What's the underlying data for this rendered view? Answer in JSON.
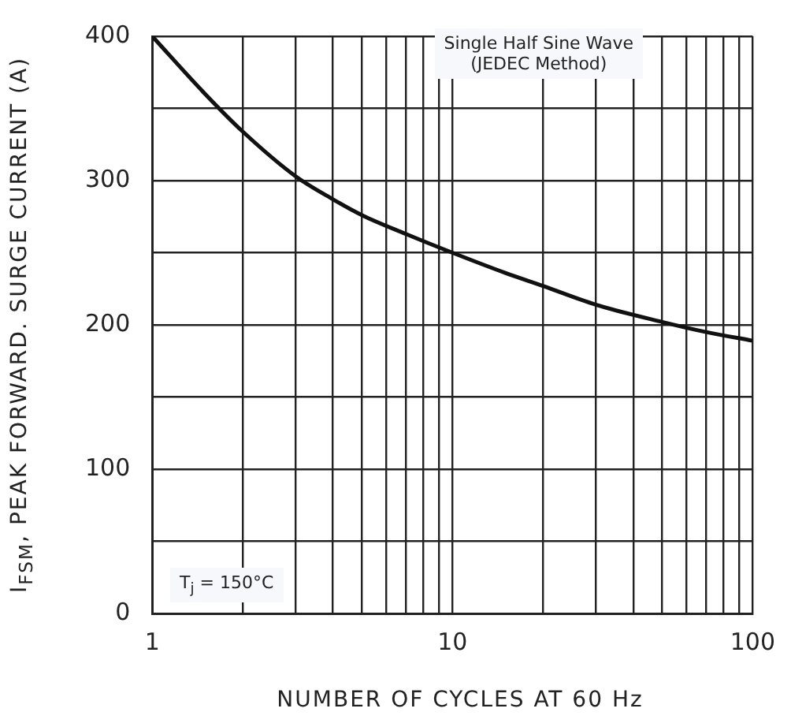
{
  "chart_data": {
    "type": "line",
    "xlabel": "NUMBER OF CYCLES AT 60 Hz",
    "ylabel": "I$_{FSM}$, PEAK FORWARD. SURGE CURRENT (A)",
    "annotations": [
      "Single Half Sine Wave\n(JEDEC Method)",
      "T$_{j}$ = 150°C"
    ],
    "x": [
      1,
      1.5,
      2,
      3,
      4,
      5,
      7,
      10,
      15,
      20,
      30,
      50,
      70,
      100
    ],
    "series": [
      {
        "color": "#111111",
        "values": [
          400,
          360,
          334,
          303,
          287,
          276,
          263,
          250,
          236,
          227,
          214,
          202,
          195,
          189
        ]
      }
    ],
    "log": "x",
    "xlim": [
      1,
      100
    ],
    "ylim": [
      0,
      400
    ],
    "xticks": [
      1,
      {
        "value": 2,
        "label": null
      },
      {
        "value": 3,
        "label": null
      },
      {
        "value": 4,
        "label": null
      },
      {
        "value": 5,
        "label": null
      },
      {
        "value": 6,
        "label": null
      },
      {
        "value": 7,
        "label": null
      },
      {
        "value": 8,
        "label": null
      },
      {
        "value": 9,
        "label": null
      },
      10,
      {
        "value": 20,
        "label": null
      },
      {
        "value": 30,
        "label": null
      },
      {
        "value": 40,
        "label": null
      },
      {
        "value": 50,
        "label": null
      },
      {
        "value": 60,
        "label": null
      },
      {
        "value": 70,
        "label": null
      },
      {
        "value": 80,
        "label": null
      },
      {
        "value": 90,
        "label": null
      },
      100
    ],
    "yticks": [
      0,
      {
        "value": 50,
        "label": null
      },
      100,
      {
        "value": 150,
        "label": null
      },
      200,
      {
        "value": 250,
        "label": null
      },
      300,
      {
        "value": 350,
        "label": null
      },
      400
    ],
    "grid": true,
    "legend": false,
    "marker": "none",
    "line_style": "solid"
  }
}
